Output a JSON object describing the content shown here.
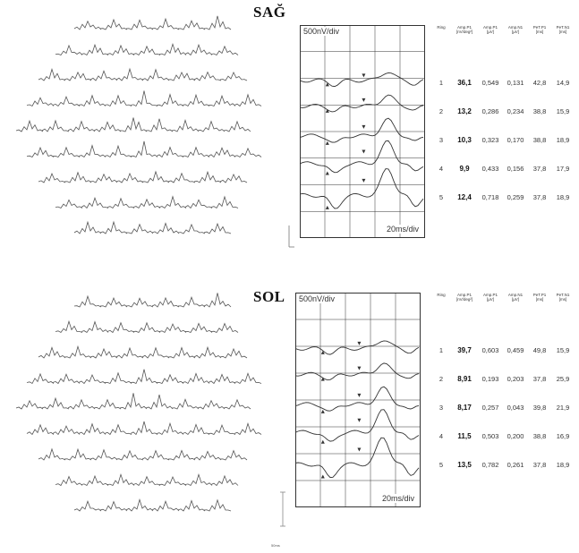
{
  "figure": {
    "footnote": "50ms"
  },
  "panels": [
    {
      "id": "right",
      "title": "SAĞ",
      "voltage_scale": "500nV/div",
      "time_scale": "20ms/div",
      "table": {
        "headers": [
          "Ring",
          "Amp.P1\n[nV/deg²]",
          "Amp.P1\n[µV]",
          "Amp.N1\n[µV]",
          "PeT.P1\n[ms]",
          "PeT.N1\n[ms]"
        ],
        "rows": [
          [
            "1",
            "36,1",
            "0,549",
            "0,131",
            "42,8",
            "14,9"
          ],
          [
            "2",
            "13,2",
            "0,286",
            "0,234",
            "38,8",
            "15,9"
          ],
          [
            "3",
            "10,3",
            "0,323",
            "0,170",
            "38,8",
            "18,9"
          ],
          [
            "4",
            "9,9",
            "0,433",
            "0,156",
            "37,8",
            "17,9"
          ],
          [
            "5",
            "12,4",
            "0,718",
            "0,259",
            "37,8",
            "18,9"
          ]
        ]
      }
    },
    {
      "id": "left",
      "title": "SOL",
      "voltage_scale": "500nV/div",
      "time_scale": "20ms/div",
      "table": {
        "headers": [
          "Ring",
          "Amp.P1\n[nV/deg²]",
          "Amp.P1\n[µV]",
          "Amp.N1\n[µV]",
          "PeT.P1\n[ms]",
          "PeT.N1\n[ms]"
        ],
        "rows": [
          [
            "1",
            "39,7",
            "0,603",
            "0,459",
            "49,8",
            "15,9"
          ],
          [
            "2",
            "8,91",
            "0,193",
            "0,203",
            "37,8",
            "25,9"
          ],
          [
            "3",
            "8,17",
            "0,257",
            "0,043",
            "39,8",
            "21,9"
          ],
          [
            "4",
            "11,5",
            "0,503",
            "0,200",
            "38,8",
            "16,9"
          ],
          [
            "5",
            "13,5",
            "0,782",
            "0,261",
            "37,8",
            "18,9"
          ]
        ]
      }
    }
  ],
  "colors": {
    "trace": "#555555",
    "grid": "#333333",
    "marker": "#333333"
  }
}
